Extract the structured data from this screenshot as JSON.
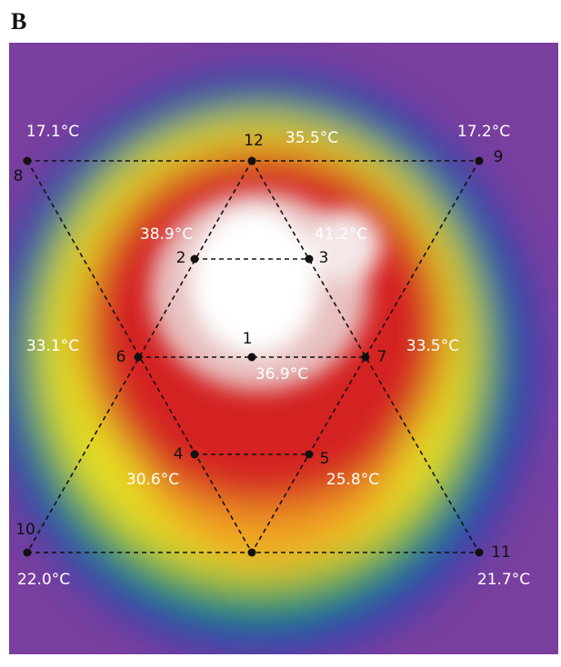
{
  "panel_label": "B",
  "points": [
    {
      "label": "1",
      "temperature": "36.9°C"
    },
    {
      "label": "2",
      "temperature": "38.9°C"
    },
    {
      "label": "3",
      "temperature": "41.2°C"
    },
    {
      "label": "4",
      "temperature": "30.6°C"
    },
    {
      "label": "5",
      "temperature": "25.8°C"
    },
    {
      "label": "6",
      "temperature": "33.1°C"
    },
    {
      "label": "7",
      "temperature": "33.5°C"
    },
    {
      "label": "8",
      "temperature": "17.1°C"
    },
    {
      "label": "9",
      "temperature": "17.2°C"
    },
    {
      "label": "10",
      "temperature": "22.0°C"
    },
    {
      "label": "11",
      "temperature": "21.7°C"
    },
    {
      "label": "12",
      "temperature": "35.5°C"
    }
  ]
}
